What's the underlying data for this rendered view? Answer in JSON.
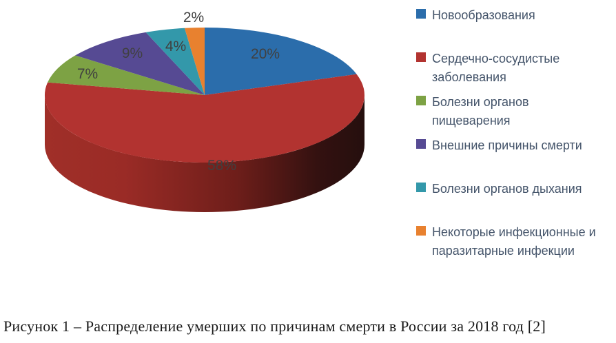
{
  "chart_data": {
    "type": "pie",
    "style": "3d",
    "title": "",
    "legend_position": "right",
    "label_color": "#404040",
    "legend_text_color": "#44546A",
    "slices": [
      {
        "label": "Новообразования",
        "value": 20,
        "pct_label": "20%",
        "color": "#2B6DAB",
        "legend_lines": [
          "Новообразования"
        ]
      },
      {
        "label": "Сердечно-сосудистые заболевания",
        "value": 58,
        "pct_label": "58%",
        "color": "#B23330",
        "legend_lines": [
          "Сердечно-сосудистые",
          "заболевания"
        ]
      },
      {
        "label": "Болезни органов пищеварения",
        "value": 7,
        "pct_label": "7%",
        "color": "#7DA244",
        "legend_lines": [
          "Болезни органов",
          "пищеварения"
        ]
      },
      {
        "label": "Внешние причины смерти",
        "value": 9,
        "pct_label": "9%",
        "color": "#564A93",
        "legend_lines": [
          "Внешние причины смерти"
        ]
      },
      {
        "label": "Болезни органов дыхания",
        "value": 4,
        "pct_label": "4%",
        "color": "#3398AA",
        "legend_lines": [
          "Болезни органов дыхания"
        ]
      },
      {
        "label": "Некоторые инфекционные и паразитарные инфекции",
        "value": 2,
        "pct_label": "2%",
        "color": "#E8812F",
        "legend_lines": [
          "Некоторые инфекционные и",
          "паразитарные инфекции"
        ]
      }
    ]
  },
  "caption": "Рисунок 1 – Распределение умерших по причинам смерти в России за 2018 год [2]"
}
